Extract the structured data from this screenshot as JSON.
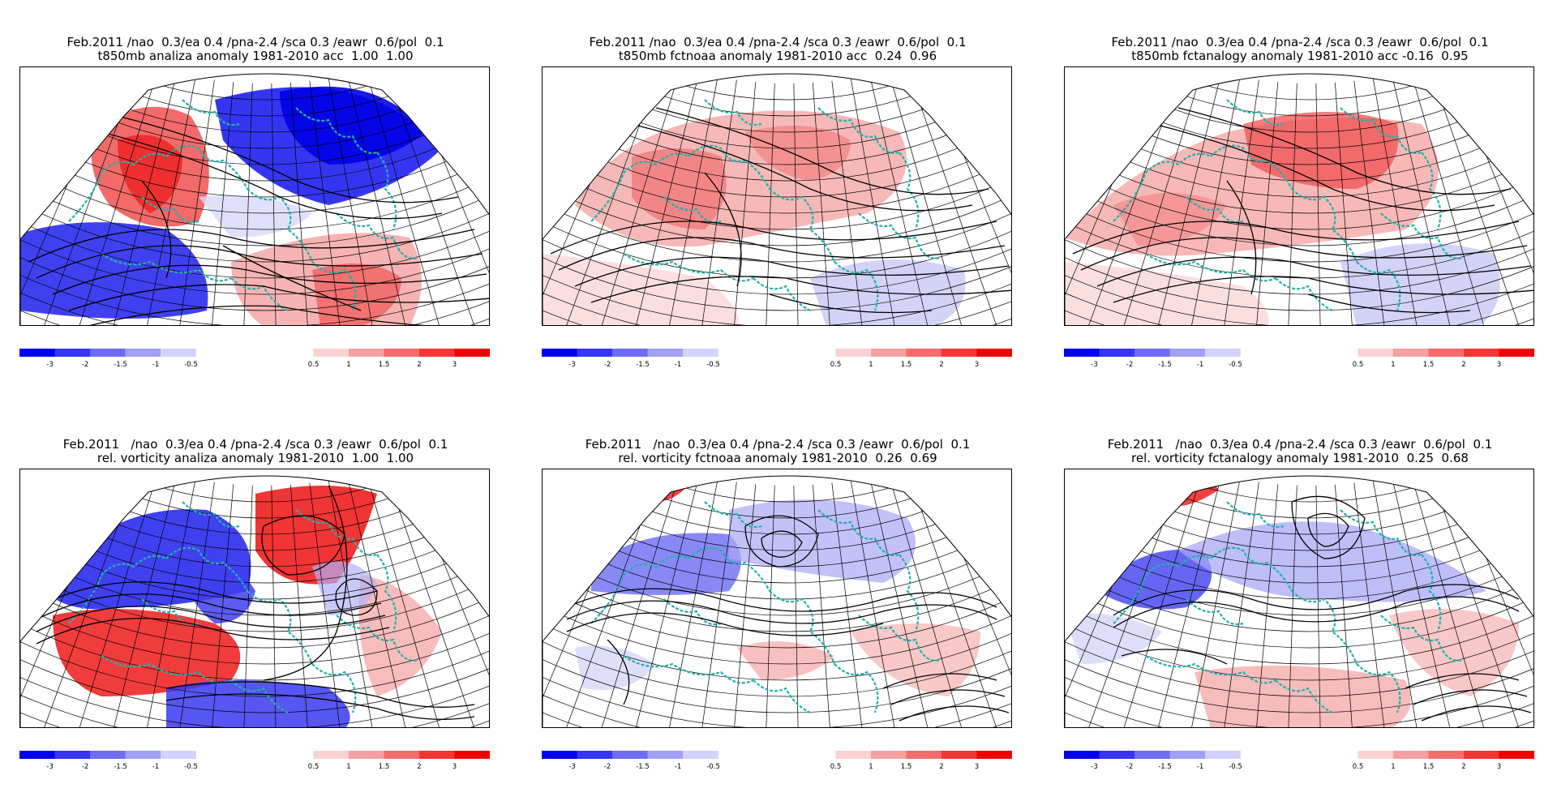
{
  "panels": [
    {
      "title_line1": "Feb.2011 /nao  0.3/ea 0.4 /pna-2.4 /sca 0.3 /eawr  0.6/pol  0.1",
      "title_line2": "t850mb analiza anomaly 1981-2010 acc  1.00  1.00",
      "variant": "t850_analysis"
    },
    {
      "title_line1": "Feb.2011 /nao  0.3/ea 0.4 /pna-2.4 /sca 0.3 /eawr  0.6/pol  0.1",
      "title_line2": "t850mb fctnoaa anomaly 1981-2010 acc  0.24  0.96",
      "variant": "t850_noaa"
    },
    {
      "title_line1": "Feb.2011 /nao  0.3/ea 0.4 /pna-2.4 /sca 0.3 /eawr  0.6/pol  0.1",
      "title_line2": "t850mb fctanalogy anomaly 1981-2010 acc -0.16  0.95",
      "variant": "t850_analogy"
    },
    {
      "title_line1": "Feb.2011   /nao  0.3/ea 0.4 /pna-2.4 /sca 0.3 /eawr  0.6/pol  0.1",
      "title_line2": "rel. vorticity analiza anomaly 1981-2010  1.00  1.00",
      "variant": "vort_analysis"
    },
    {
      "title_line1": "Feb.2011   /nao  0.3/ea 0.4 /pna-2.4 /sca 0.3 /eawr  0.6/pol  0.1",
      "title_line2": "rel. vorticity fctnoaa anomaly 1981-2010  0.26  0.69",
      "variant": "vort_noaa"
    },
    {
      "title_line1": "Feb.2011   /nao  0.3/ea 0.4 /pna-2.4 /sca 0.3 /eawr  0.6/pol  0.1",
      "title_line2": "rel. vorticity fctanalogy anomaly 1981-2010  0.25  0.68",
      "variant": "vort_analogy"
    }
  ],
  "colorbar": {
    "tick_labels": [
      "-3",
      "-2",
      "-1.5",
      "-1",
      "-0.5",
      "0.5",
      "1",
      "1.5",
      "2",
      "3"
    ],
    "negative_colors": [
      "#0000f0",
      "#3535f2",
      "#6c6cf4",
      "#a0a0f6",
      "#d2d2fa"
    ],
    "positive_colors": [
      "#fad2d2",
      "#f6a0a0",
      "#f46c6c",
      "#f23535",
      "#f00000"
    ]
  },
  "map_colors": {
    "coastline": "#20b2aa",
    "contour": "#000000",
    "grid": "#000000"
  }
}
